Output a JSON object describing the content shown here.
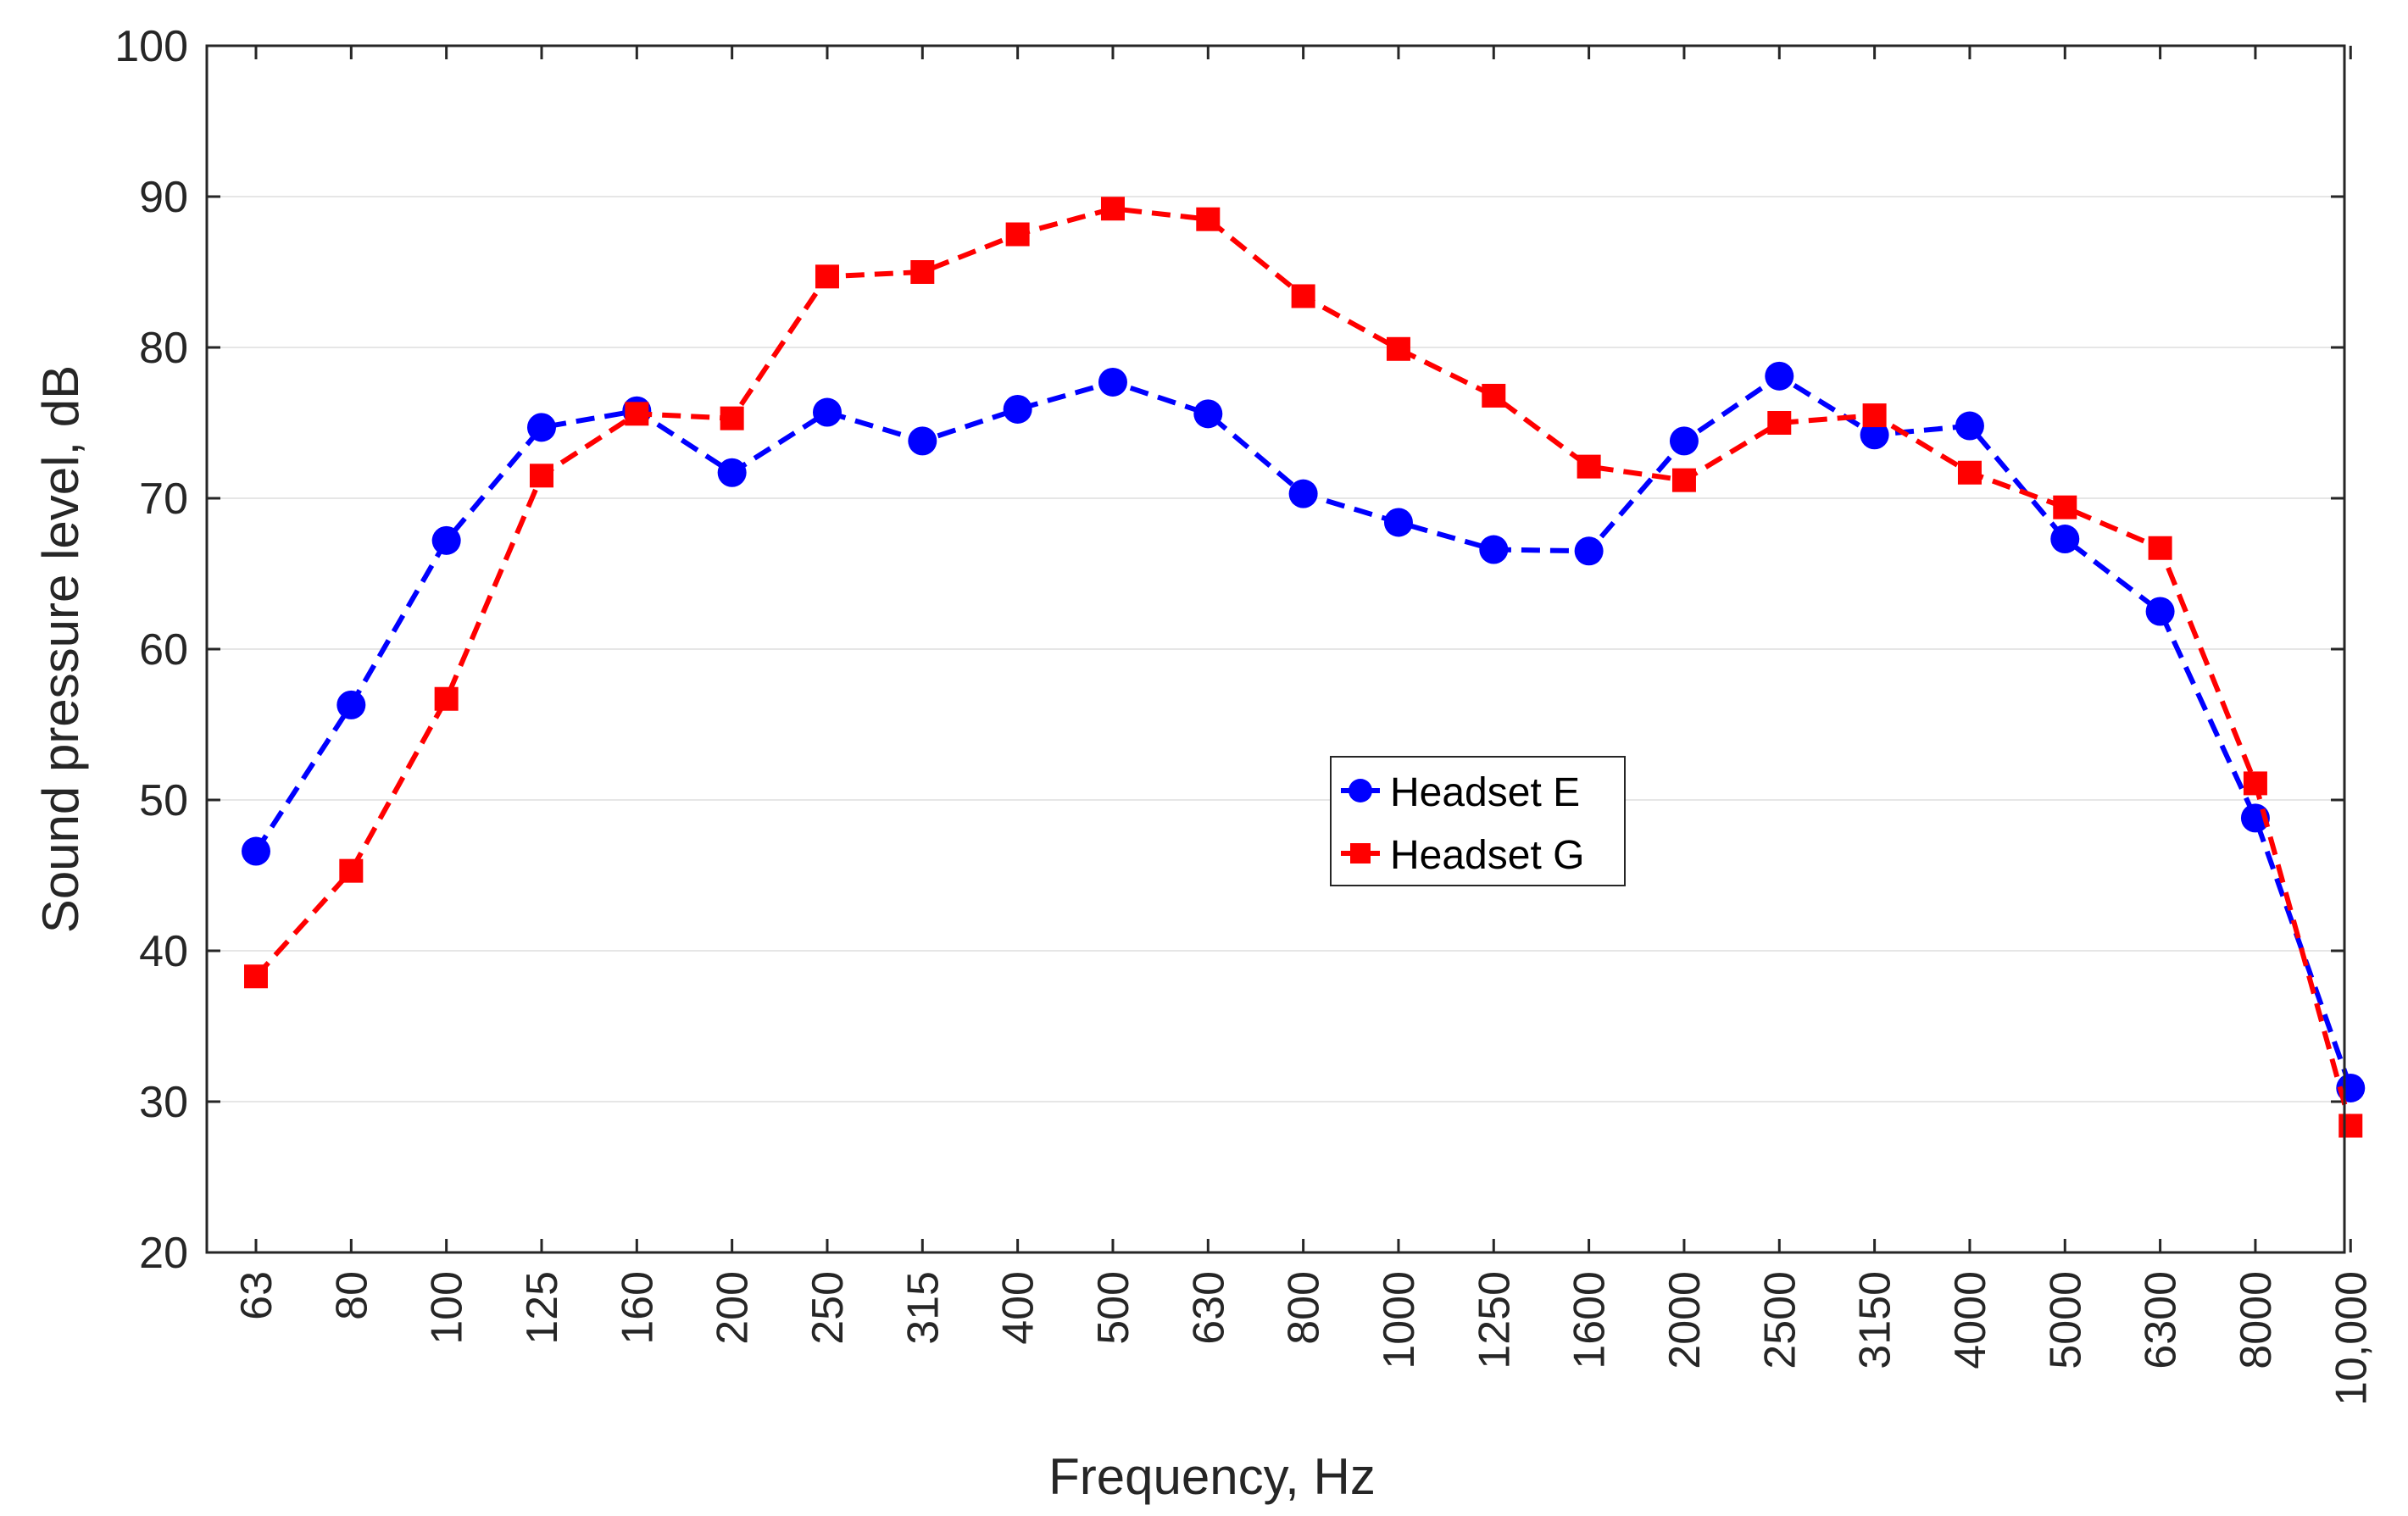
{
  "chart_data": {
    "type": "line",
    "title": "",
    "xlabel": "Frequency, Hz",
    "ylabel": "Sound pressure level, dB",
    "ylim": [
      20,
      100
    ],
    "yticks": [
      "20",
      "30",
      "40",
      "50",
      "60",
      "70",
      "80",
      "90",
      "100"
    ],
    "grid": "horizontal",
    "legend_position": "center",
    "categories": [
      "63",
      "80",
      "100",
      "125",
      "160",
      "200",
      "250",
      "315",
      "400",
      "500",
      "630",
      "800",
      "1000",
      "1250",
      "1600",
      "2000",
      "2500",
      "3150",
      "4000",
      "5000",
      "6300",
      "8000",
      "10,000"
    ],
    "series": [
      {
        "name": "Headset E",
        "marker": "circle",
        "color": "#0000ff",
        "values": [
          46.6,
          56.3,
          67.2,
          74.7,
          75.8,
          71.7,
          75.7,
          73.8,
          75.9,
          77.7,
          75.6,
          70.3,
          68.4,
          66.6,
          66.5,
          73.8,
          78.1,
          74.2,
          74.8,
          67.3,
          62.5,
          48.8,
          30.9
        ]
      },
      {
        "name": "Headset G",
        "marker": "square",
        "color": "#ff0000",
        "values": [
          38.3,
          45.3,
          56.7,
          71.5,
          75.6,
          75.3,
          84.7,
          85.0,
          87.5,
          89.2,
          88.5,
          83.4,
          79.9,
          76.8,
          72.1,
          71.2,
          75.0,
          75.5,
          71.7,
          69.4,
          66.7,
          51.1,
          28.4
        ]
      }
    ]
  }
}
